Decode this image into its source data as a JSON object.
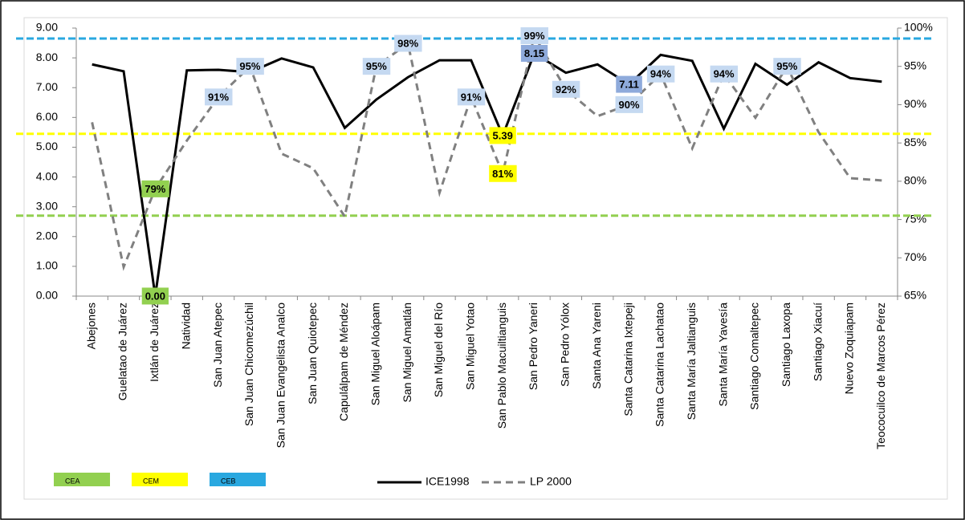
{
  "chart_data": {
    "type": "line",
    "categories": [
      "Abejones",
      "Guelatao de Juárez",
      "Ixtlán de Juárez",
      "Natividad",
      "San Juan Atepec",
      "San Juan Chicomezúchil",
      "San Juan Evangelista Analco",
      "San Juan Quiotepec",
      "Capulálpam de Méndez",
      "San Miguel Aloápam",
      "San Miguel Amatlán",
      "San Miguel del Río",
      "San Miguel Yotao",
      "San Pablo Macuiltianguis",
      "San Pedro Yaneri",
      "San Pedro Yólox",
      "Santa Ana Yareni",
      "Santa Catarina Ixtepeji",
      "Santa Catarina Lachatao",
      "Santa María Jaltianguis",
      "Santa María Yavesía",
      "Santiago Comaltepec",
      "Santiago Laxopa",
      "Santiago Xiacuí",
      "Nuevo Zoquiapam",
      "Teococuilco de Marcos Pérez"
    ],
    "series": [
      {
        "name": "ICE1998",
        "color": "#000000",
        "dash": false,
        "axis": "y",
        "values": [
          7.78,
          7.55,
          0.0,
          7.58,
          7.6,
          7.52,
          7.98,
          7.68,
          5.65,
          6.6,
          7.35,
          7.92,
          7.92,
          5.39,
          8.15,
          7.5,
          7.78,
          7.11,
          8.1,
          7.9,
          5.62,
          7.8,
          7.1,
          7.85,
          7.32,
          7.2
        ],
        "value_labels": [
          null,
          null,
          "0.00",
          null,
          null,
          null,
          null,
          null,
          null,
          null,
          null,
          null,
          null,
          "5.39",
          "8.15",
          null,
          null,
          "7.11",
          null,
          null,
          null,
          null,
          null,
          null,
          null,
          null
        ],
        "label_colors": [
          null,
          null,
          "#92d050",
          null,
          null,
          null,
          null,
          null,
          null,
          null,
          null,
          null,
          null,
          "#ffff00",
          "#8eaadb",
          null,
          null,
          "#8eaadb",
          null,
          null,
          null,
          null,
          null,
          null,
          null,
          null
        ]
      },
      {
        "name": "LP 2000",
        "color": "#808080",
        "dash": true,
        "axis": "y2",
        "values": [
          87.7,
          68.8,
          79,
          85.3,
          91,
          95,
          83.6,
          81.7,
          75.4,
          95,
          98,
          78.5,
          91,
          81,
          99,
          92,
          88.5,
          90,
          94,
          84.3,
          94,
          88.3,
          95,
          86.4,
          80.4,
          80.1
        ],
        "value_labels": [
          null,
          null,
          "79%",
          null,
          "91%",
          "95%",
          null,
          null,
          null,
          "95%",
          "98%",
          null,
          "91%",
          "81%",
          "99%",
          "92%",
          null,
          "90%",
          "94%",
          null,
          "94%",
          null,
          "95%",
          null,
          null,
          null
        ],
        "label_colors": [
          null,
          null,
          "#92d050",
          null,
          "#c5d9f1",
          "#c5d9f1",
          null,
          null,
          null,
          "#c5d9f1",
          "#c5d9f1",
          null,
          "#c5d9f1",
          "#ffff00",
          "#c5d9f1",
          "#c5d9f1",
          null,
          "#c5d9f1",
          "#c5d9f1",
          null,
          "#c5d9f1",
          null,
          "#c5d9f1",
          null,
          null,
          null
        ]
      }
    ],
    "reference_lines": [
      {
        "name": "CEA",
        "value": 2.7,
        "color": "#92d050"
      },
      {
        "name": "CEM",
        "value": 5.45,
        "color": "#ffff00"
      },
      {
        "name": "CEB",
        "value": 8.65,
        "color": "#29a8e0"
      }
    ],
    "ylim": [
      0,
      9
    ],
    "yticks": [
      {
        "value": 0,
        "label": "0.00"
      },
      {
        "value": 1,
        "label": "1.00"
      },
      {
        "value": 2,
        "label": "2.00"
      },
      {
        "value": 3,
        "label": "3.00"
      },
      {
        "value": 4,
        "label": "4.00"
      },
      {
        "value": 5,
        "label": "5.00"
      },
      {
        "value": 6,
        "label": "6.00"
      },
      {
        "value": 7,
        "label": "7.00"
      },
      {
        "value": 8,
        "label": "8.00"
      },
      {
        "value": 9,
        "label": "9.00"
      }
    ],
    "y2lim": [
      65,
      100
    ],
    "y2ticks": [
      {
        "value": 65,
        "label": "65%"
      },
      {
        "value": 70,
        "label": "70%"
      },
      {
        "value": 75,
        "label": "75%"
      },
      {
        "value": 80,
        "label": "80%"
      },
      {
        "value": 85,
        "label": "85%"
      },
      {
        "value": 90,
        "label": "90%"
      },
      {
        "value": 95,
        "label": "95%"
      },
      {
        "value": 100,
        "label": "100%"
      }
    ],
    "grid": false
  }
}
